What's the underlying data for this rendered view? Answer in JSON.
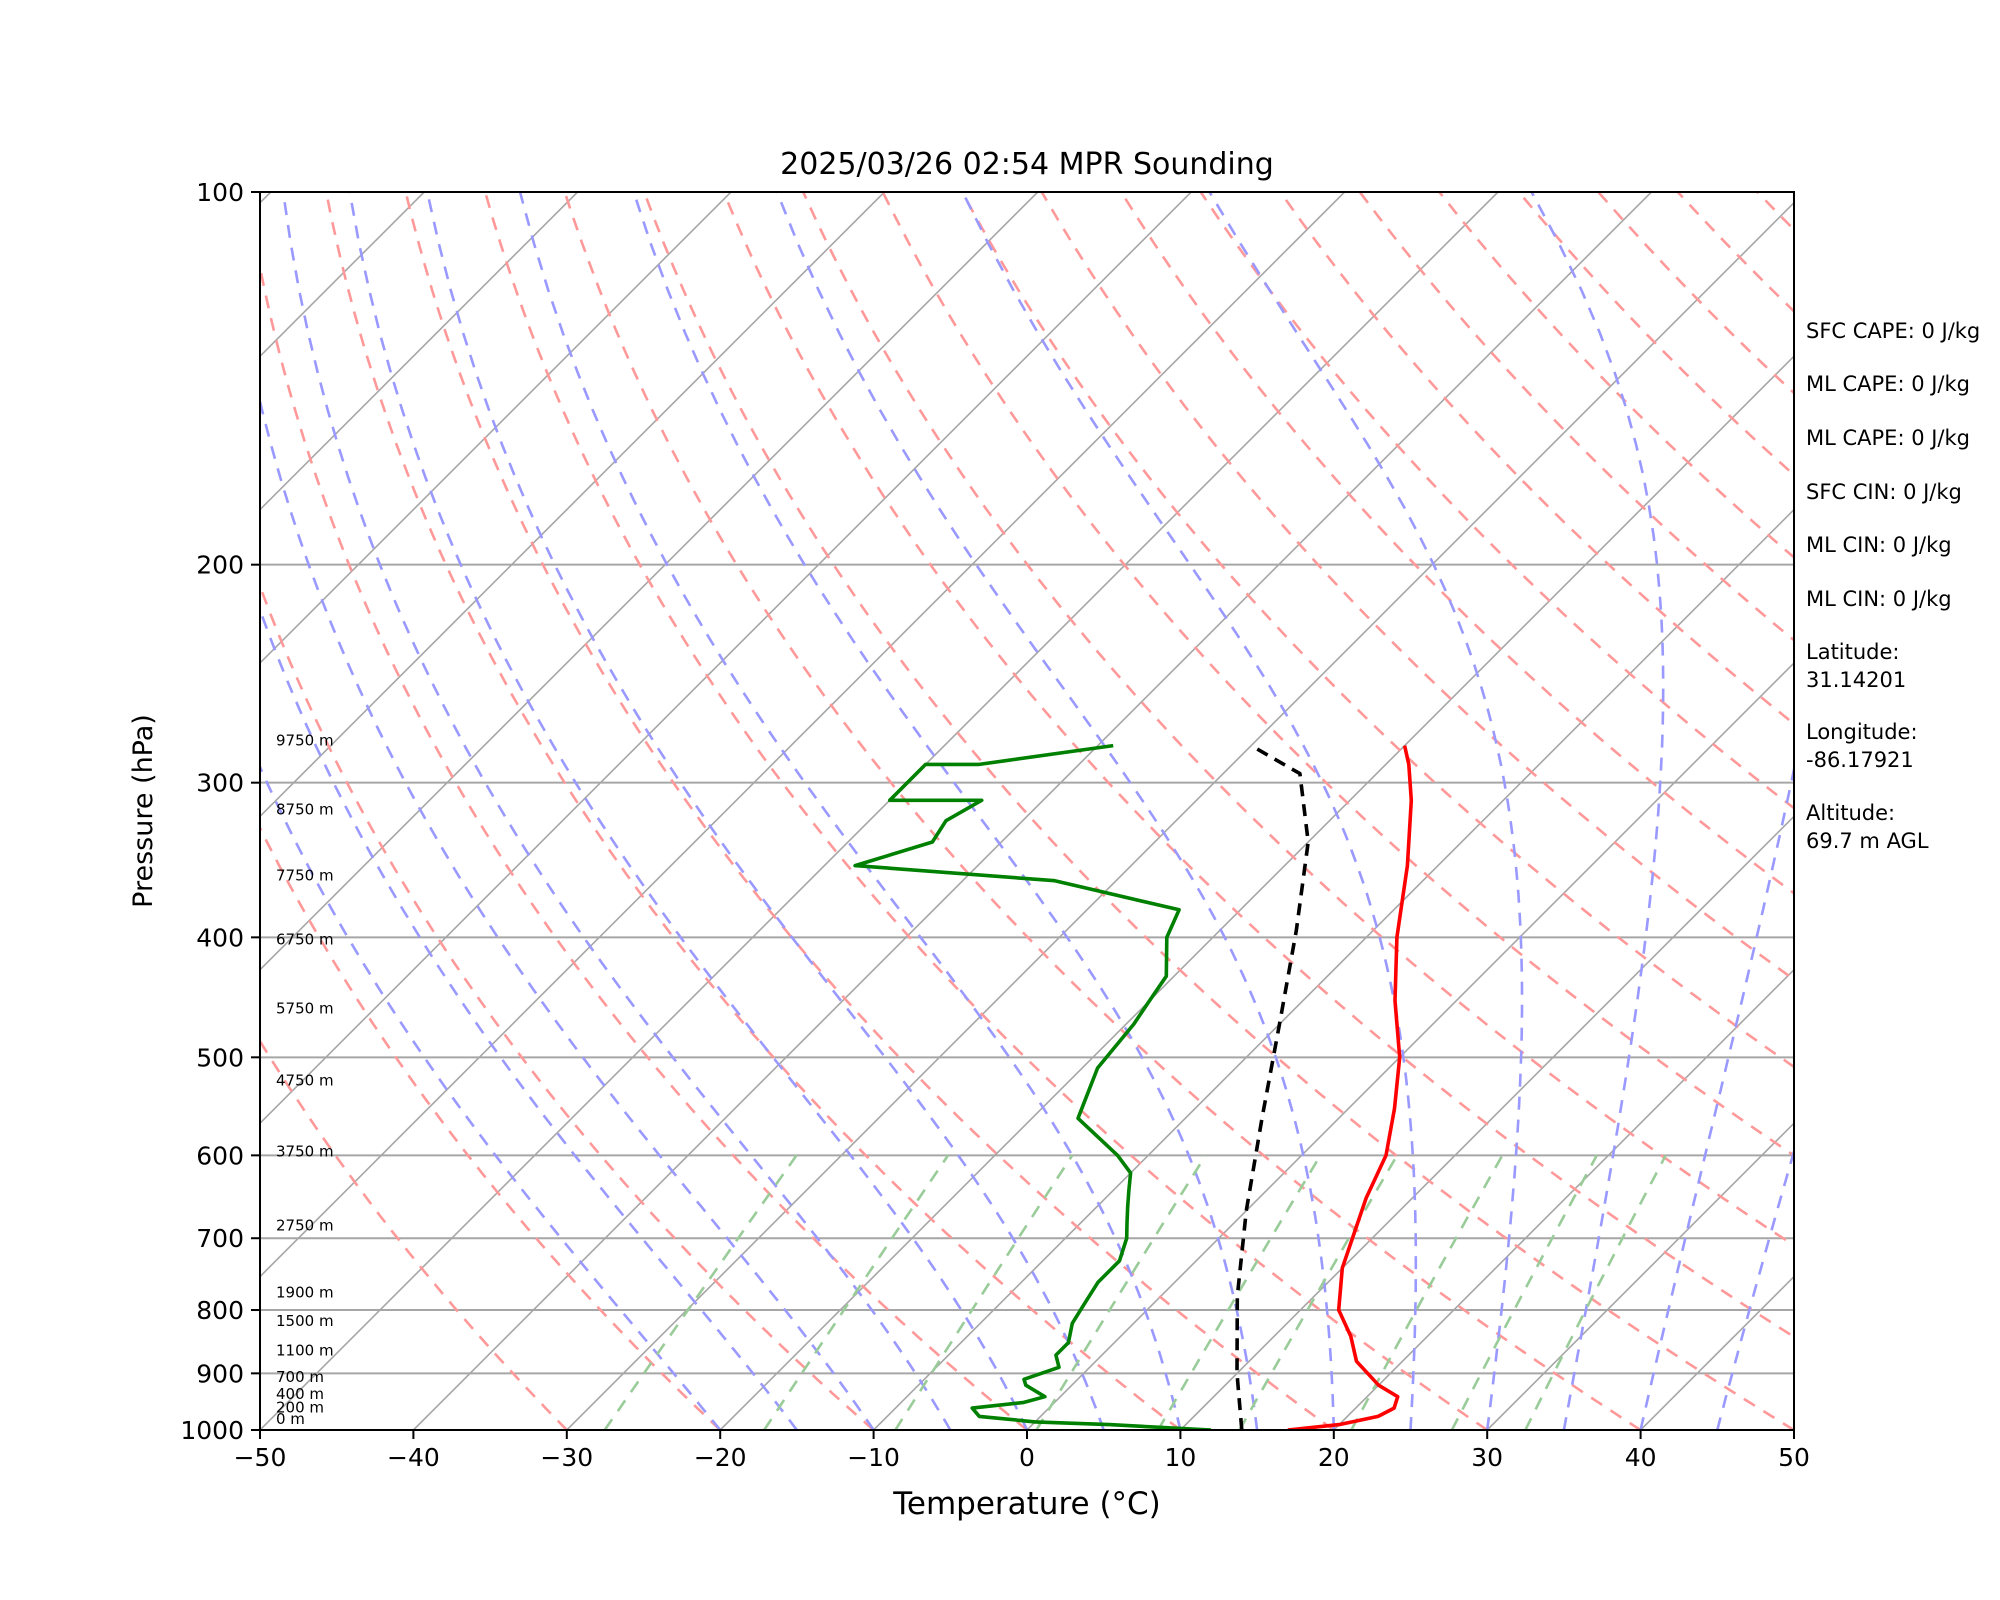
{
  "chart_data": {
    "type": "line",
    "title": "2025/03/26 02:54 MPR Sounding",
    "xlabel": "Temperature (°C)",
    "ylabel": "Pressure (hPa)",
    "xlim": [
      -50,
      50
    ],
    "ylim": [
      1000,
      100
    ],
    "y_scale": "log",
    "x_ticks": [
      "−50",
      "−40",
      "−30",
      "−20",
      "−10",
      "0",
      "10",
      "20",
      "30",
      "40",
      "50"
    ],
    "y_ticks": [
      "100",
      "200",
      "300",
      "400",
      "500",
      "600",
      "700",
      "800",
      "900",
      "1000"
    ],
    "grid": true,
    "height_labels": [
      "9750 m",
      "8750 m",
      "7750 m",
      "6750 m",
      "5750 m",
      "4750 m",
      "3750 m",
      "2750 m",
      "1900 m",
      "1500 m",
      "1100 m",
      "700 m",
      "400 m",
      "200 m",
      "0 m"
    ],
    "series": [
      {
        "color": "#ff0000",
        "x": [
          17,
          20,
          22,
          22.5,
          22,
          20,
          17,
          15,
          12.5,
          10,
          7,
          5.5,
          3,
          0,
          -4,
          -8,
          -12,
          -16,
          -18.5,
          -20
        ],
        "y": [
          1000,
          990,
          975,
          960,
          940,
          920,
          880,
          840,
          800,
          740,
          650,
          600,
          550,
          500,
          450,
          400,
          350,
          310,
          290,
          280
        ]
      },
      {
        "color": "#008000",
        "x": [
          12,
          5,
          0,
          -4,
          -5,
          -2,
          -1,
          -3,
          -3.5,
          -2,
          -3,
          -3,
          -4,
          -4.5,
          -5,
          -5,
          -6,
          -7,
          -8,
          -9,
          -10,
          -12,
          -17,
          -19,
          -19.5,
          -20,
          -20.5,
          -23,
          -24,
          -34,
          -48,
          -44.5,
          -45,
          -44,
          -50,
          -50,
          -46.5,
          -39
        ],
        "y": [
          1000,
          990,
          985,
          975,
          960,
          950,
          940,
          920,
          910,
          890,
          870,
          850,
          820,
          790,
          760,
          730,
          700,
          680,
          660,
          640,
          620,
          600,
          560,
          510,
          470,
          450,
          430,
          400,
          380,
          360,
          350,
          335,
          322,
          310,
          310,
          290,
          290,
          280
        ]
      },
      {
        "color": "#000000",
        "dashed": true,
        "x": [
          14,
          10,
          5,
          0,
          -5,
          -10,
          -15,
          -20,
          -25,
          -30
        ],
        "y": [
          1000,
          900,
          780,
          665,
          560,
          470,
          395,
          335,
          295,
          280
        ]
      }
    ]
  },
  "indices": [
    {
      "text": "SFC CAPE: 0 J/kg"
    },
    {
      "text": "ML CAPE: 0 J/kg"
    },
    {
      "text": "ML CAPE: 0 J/kg"
    },
    {
      "text": "SFC CIN: 0 J/kg"
    },
    {
      "text": "ML CIN: 0 J/kg"
    },
    {
      "text": "ML CIN: 0 J/kg"
    }
  ],
  "location": [
    {
      "label": "Latitude:",
      "value": "31.14201"
    },
    {
      "label": "Longitude:",
      "value": "-86.17921"
    },
    {
      "label": "Altitude:",
      "value": "69.7 m AGL"
    }
  ]
}
